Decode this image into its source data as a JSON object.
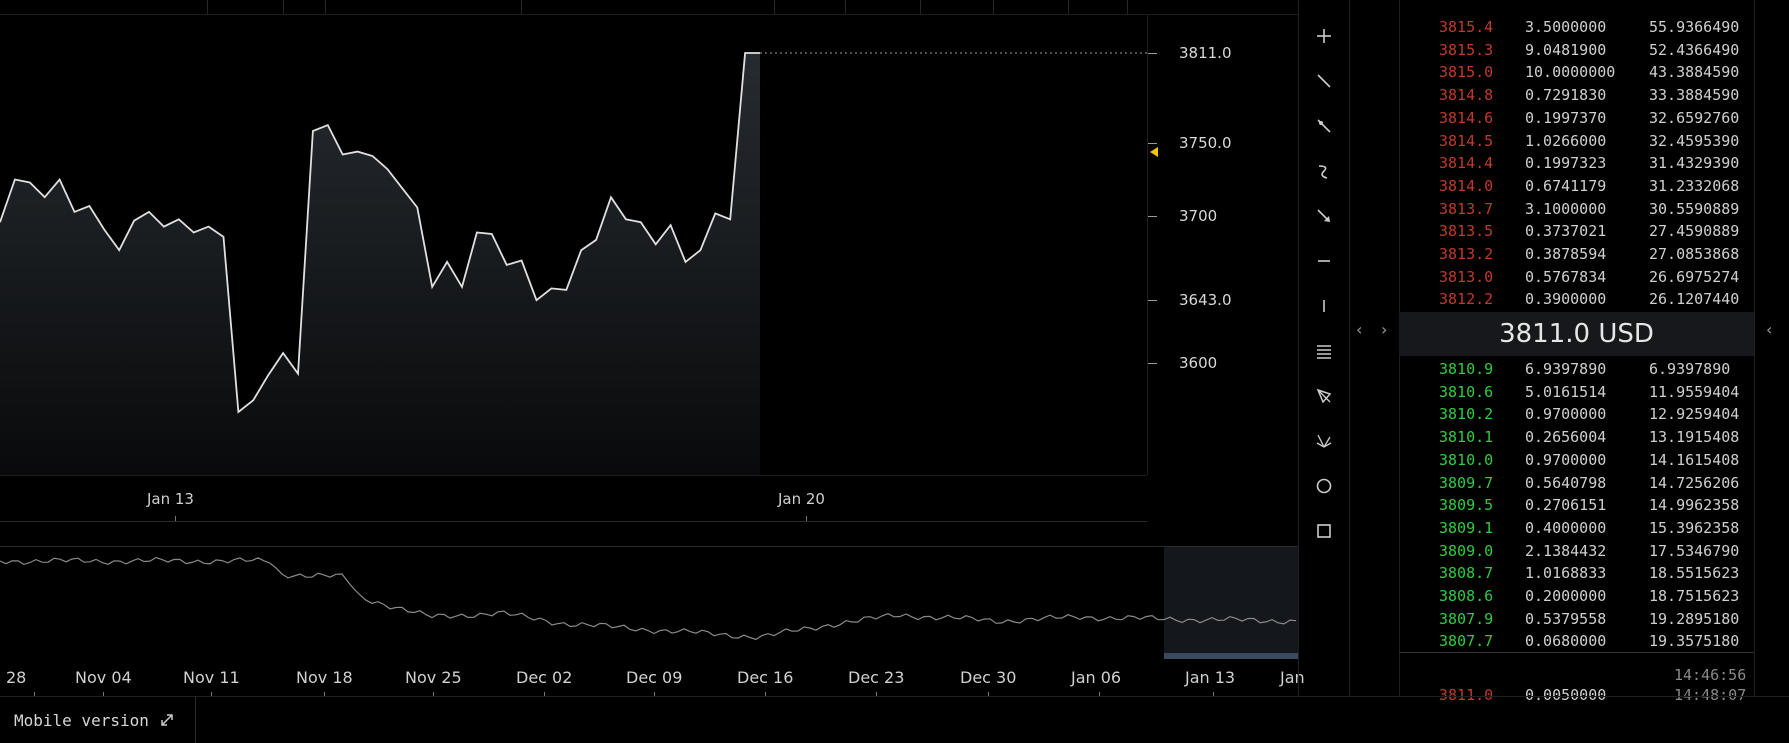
{
  "price_axis": {
    "labels": [
      {
        "value": 3811.0,
        "text": "3811.0"
      },
      {
        "value": 3750.0,
        "text": "3750.0"
      },
      {
        "value": 3700,
        "text": "3700"
      },
      {
        "value": 3643.0,
        "text": "3643.0"
      },
      {
        "value": 3600,
        "text": "3600"
      }
    ]
  },
  "main_dates": [
    "Jan 13",
    "Jan 20"
  ],
  "chart_data": {
    "type": "area",
    "x_axis_labels": [
      "Jan 13",
      "Jan 20"
    ],
    "y_axis_labels": [
      "3811.0",
      "3750.0",
      "3700",
      "3643.0",
      "3600"
    ],
    "last_price": 3811.0,
    "values": [
      3696,
      3725,
      3723,
      3713,
      3725,
      3703,
      3707,
      3691,
      3677,
      3697,
      3703,
      3693,
      3698,
      3689,
      3693,
      3686,
      3567,
      3575,
      3592,
      3607,
      3593,
      3758,
      3762,
      3742,
      3744,
      3741,
      3732,
      3719,
      3706,
      3652,
      3669,
      3652,
      3689,
      3688,
      3667,
      3670,
      3643,
      3651,
      3650,
      3677,
      3684,
      3713,
      3698,
      3696,
      3681,
      3694,
      3669,
      3677,
      3702,
      3698,
      3811,
      3811
    ]
  },
  "navigator": {
    "dates": [
      "28",
      "Nov 04",
      "Nov 11",
      "Nov 18",
      "Nov 25",
      "Dec 02",
      "Dec 09",
      "Dec 16",
      "Dec 23",
      "Dec 30",
      "Jan 06",
      "Jan 13",
      "Jan"
    ]
  },
  "tools": [
    "crosshair-icon",
    "trend-line-icon",
    "ray-icon",
    "freehand-icon",
    "arrow-icon",
    "horizontal-line-icon",
    "vertical-line-icon",
    "fib-icon",
    "pitchfork-icon",
    "gann-fan-icon",
    "circle-icon",
    "rectangle-icon"
  ],
  "orderbook": {
    "asks": [
      {
        "p": "3815.4",
        "a": "3.5000000",
        "t": "55.9366490"
      },
      {
        "p": "3815.3",
        "a": "9.0481900",
        "t": "52.4366490"
      },
      {
        "p": "3815.0",
        "a": "10.0000000",
        "t": "43.3884590"
      },
      {
        "p": "3814.8",
        "a": "0.7291830",
        "t": "33.3884590"
      },
      {
        "p": "3814.6",
        "a": "0.1997370",
        "t": "32.6592760"
      },
      {
        "p": "3814.5",
        "a": "1.0266000",
        "t": "32.4595390"
      },
      {
        "p": "3814.4",
        "a": "0.1997323",
        "t": "31.4329390"
      },
      {
        "p": "3814.0",
        "a": "0.6741179",
        "t": "31.2332068"
      },
      {
        "p": "3813.7",
        "a": "3.1000000",
        "t": "30.5590889"
      },
      {
        "p": "3813.5",
        "a": "0.3737021",
        "t": "27.4590889"
      },
      {
        "p": "3813.2",
        "a": "0.3878594",
        "t": "27.0853868"
      },
      {
        "p": "3813.0",
        "a": "0.5767834",
        "t": "26.6975274"
      },
      {
        "p": "3812.2",
        "a": "0.3900000",
        "t": "26.1207440"
      }
    ],
    "mid_price": "3811.0 USD",
    "bids": [
      {
        "p": "3810.9",
        "a": "6.9397890",
        "t": "6.9397890"
      },
      {
        "p": "3810.6",
        "a": "5.0161514",
        "t": "11.9559404"
      },
      {
        "p": "3810.2",
        "a": "0.9700000",
        "t": "12.9259404"
      },
      {
        "p": "3810.1",
        "a": "0.2656004",
        "t": "13.1915408"
      },
      {
        "p": "3810.0",
        "a": "0.9700000",
        "t": "14.1615408"
      },
      {
        "p": "3809.7",
        "a": "0.5640798",
        "t": "14.7256206"
      },
      {
        "p": "3809.5",
        "a": "0.2706151",
        "t": "14.9962358"
      },
      {
        "p": "3809.1",
        "a": "0.4000000",
        "t": "15.3962358"
      },
      {
        "p": "3809.0",
        "a": "2.1384432",
        "t": "17.5346790"
      },
      {
        "p": "3808.7",
        "a": "1.0168833",
        "t": "18.5515623"
      },
      {
        "p": "3808.6",
        "a": "0.2000000",
        "t": "18.7515623"
      },
      {
        "p": "3807.9",
        "a": "0.5379558",
        "t": "19.2895180"
      },
      {
        "p": "3807.7",
        "a": "0.0680000",
        "t": "19.3575180"
      }
    ],
    "trades": [
      {
        "p": "",
        "a": "",
        "time": "14:46:56"
      },
      {
        "p": "3811.0",
        "a": "0.0050000",
        "time": "14:48:07"
      }
    ]
  },
  "colors": {
    "ask": "#c0392b",
    "ask_dim": "#6e1414",
    "bid": "#2ecc40",
    "bid_dim": "#1a6e1a",
    "line": "#e0e0e0"
  },
  "footer": {
    "mobile_label": "Mobile version"
  }
}
